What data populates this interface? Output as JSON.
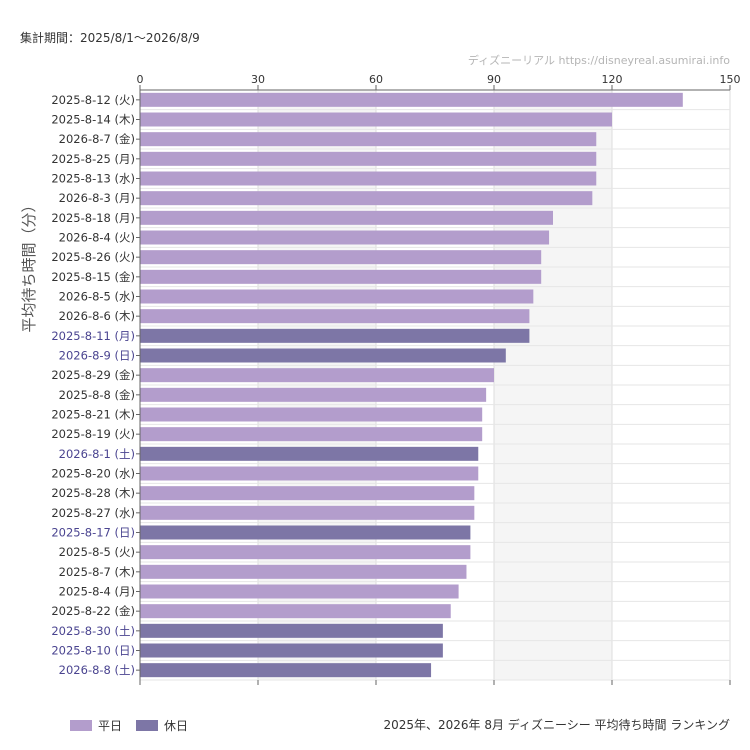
{
  "header": {
    "period": "集計期間：2025/8/1～2026/8/9",
    "site": "ディズニーリアル https://disneyreal.asumirai.info"
  },
  "footer": {
    "title": "2025年、2026年 8月 ディズニーシー 平均待ち時間 ランキング"
  },
  "colors": {
    "weekday": "#b39dcc",
    "holiday": "#7d76a6",
    "holiday_label": "#4a4490",
    "weekday_label": "#333333",
    "band": "#f5f5f5"
  },
  "chart_data": {
    "type": "bar",
    "orientation": "horizontal",
    "ylabel": "平均待ち時間（分）",
    "xlabel": "",
    "xlim": [
      0,
      150
    ],
    "xticks": [
      0,
      30,
      60,
      90,
      120,
      150
    ],
    "grid": true,
    "legend_position": "bottom-left",
    "legend": [
      {
        "name": "平日",
        "kind": "weekday"
      },
      {
        "name": "休日",
        "kind": "holiday"
      }
    ],
    "categories": [
      "2025-8-12 (火)",
      "2025-8-14 (木)",
      "2026-8-7 (金)",
      "2025-8-25 (月)",
      "2025-8-13 (水)",
      "2026-8-3 (月)",
      "2025-8-18 (月)",
      "2026-8-4 (火)",
      "2025-8-26 (火)",
      "2025-8-15 (金)",
      "2026-8-5 (水)",
      "2026-8-6 (木)",
      "2025-8-11 (月)",
      "2026-8-9 (日)",
      "2025-8-29 (金)",
      "2025-8-8 (金)",
      "2025-8-21 (木)",
      "2025-8-19 (火)",
      "2026-8-1 (土)",
      "2025-8-20 (水)",
      "2025-8-28 (木)",
      "2025-8-27 (水)",
      "2025-8-17 (日)",
      "2025-8-5 (火)",
      "2025-8-7 (木)",
      "2025-8-4 (月)",
      "2025-8-22 (金)",
      "2025-8-30 (土)",
      "2025-8-10 (日)",
      "2026-8-8 (土)"
    ],
    "values": [
      138,
      120,
      116,
      116,
      116,
      115,
      105,
      104,
      102,
      102,
      100,
      99,
      99,
      93,
      90,
      88,
      87,
      87,
      86,
      86,
      85,
      85,
      84,
      84,
      83,
      81,
      79,
      77,
      77,
      74
    ],
    "kinds": [
      "weekday",
      "weekday",
      "weekday",
      "weekday",
      "weekday",
      "weekday",
      "weekday",
      "weekday",
      "weekday",
      "weekday",
      "weekday",
      "weekday",
      "holiday",
      "holiday",
      "weekday",
      "weekday",
      "weekday",
      "weekday",
      "holiday",
      "weekday",
      "weekday",
      "weekday",
      "holiday",
      "weekday",
      "weekday",
      "weekday",
      "weekday",
      "holiday",
      "holiday",
      "holiday"
    ]
  }
}
